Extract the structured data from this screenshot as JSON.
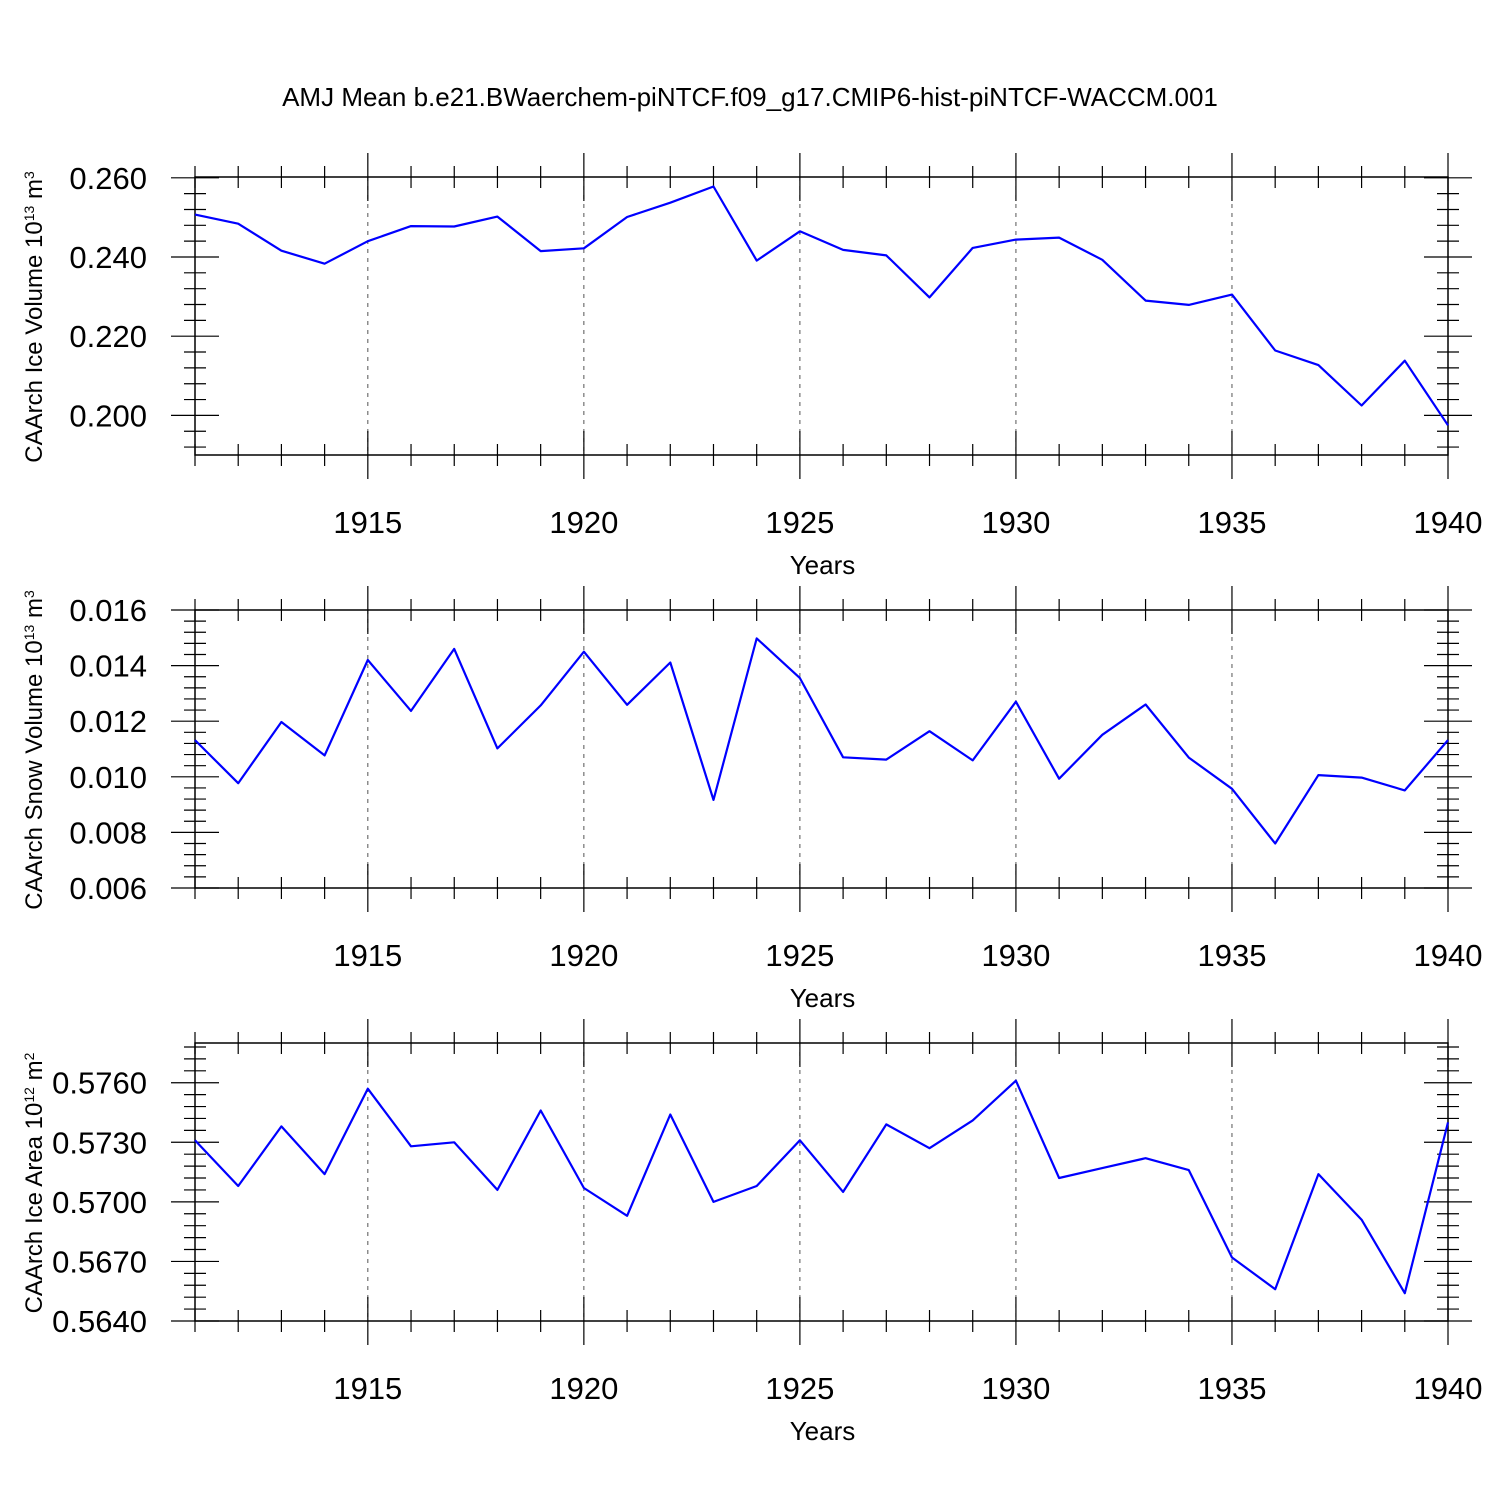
{
  "title": "AMJ Mean b.e21.BWaerchem-piNTCF.f09_g17.CMIP6-hist-piNTCF-WACCM.001",
  "colors": {
    "line": "#0000ff",
    "axis": "#000000",
    "grid": "#555555"
  },
  "chart_data": [
    {
      "type": "line",
      "name": "ice-volume",
      "xlabel": "Years",
      "ylabel": {
        "base": "CAArch Ice Volume 10",
        "exp1": "13",
        "unit": " m",
        "exp2": "3"
      },
      "xlim": [
        1911,
        1940
      ],
      "ylim": [
        0.19,
        0.2602
      ],
      "xticks": [
        "1915",
        "1920",
        "1925",
        "1930",
        "1935",
        "1940"
      ],
      "yticks": [
        "0.200",
        "0.220",
        "0.240",
        "0.260"
      ],
      "ytick_values": [
        0.2,
        0.22,
        0.24,
        0.26
      ],
      "x": [
        1911,
        1912,
        1913,
        1914,
        1915,
        1916,
        1917,
        1918,
        1919,
        1920,
        1921,
        1922,
        1923,
        1924,
        1925,
        1926,
        1927,
        1928,
        1929,
        1930,
        1931,
        1932,
        1933,
        1934,
        1935,
        1936,
        1937,
        1938,
        1939,
        1940
      ],
      "series": [
        {
          "name": "CAArch Ice Volume",
          "values": [
            0.2507,
            0.2484,
            0.2416,
            0.2383,
            0.244,
            0.2478,
            0.2477,
            0.2502,
            0.2415,
            0.2422,
            0.2501,
            0.2537,
            0.2578,
            0.2391,
            0.2465,
            0.2418,
            0.2404,
            0.2298,
            0.2423,
            0.2444,
            0.2449,
            0.2393,
            0.229,
            0.2279,
            0.2305,
            0.2164,
            0.2127,
            0.2025,
            0.2138,
            0.1975
          ]
        }
      ]
    },
    {
      "type": "line",
      "name": "snow-volume",
      "xlabel": "Years",
      "ylabel": {
        "base": "CAArch Snow Volume 10",
        "exp1": "13",
        "unit": " m",
        "exp2": "3"
      },
      "xlim": [
        1911,
        1940
      ],
      "ylim": [
        0.006,
        0.016
      ],
      "xticks": [
        "1915",
        "1920",
        "1925",
        "1930",
        "1935",
        "1940"
      ],
      "yticks": [
        "0.006",
        "0.008",
        "0.010",
        "0.012",
        "0.014",
        "0.016"
      ],
      "ytick_values": [
        0.006,
        0.008,
        0.01,
        0.012,
        0.014,
        0.016
      ],
      "x": [
        1911,
        1912,
        1913,
        1914,
        1915,
        1916,
        1917,
        1918,
        1919,
        1920,
        1921,
        1922,
        1923,
        1924,
        1925,
        1926,
        1927,
        1928,
        1929,
        1930,
        1931,
        1932,
        1933,
        1934,
        1935,
        1936,
        1937,
        1938,
        1939,
        1940
      ],
      "series": [
        {
          "name": "CAArch Snow Volume",
          "values": [
            0.01132,
            0.00977,
            0.01197,
            0.01077,
            0.0142,
            0.01237,
            0.0146,
            0.01102,
            0.01257,
            0.0145,
            0.01259,
            0.01411,
            0.00917,
            0.01498,
            0.01355,
            0.0107,
            0.01062,
            0.01164,
            0.01059,
            0.0127,
            0.00993,
            0.01151,
            0.0126,
            0.01069,
            0.00957,
            0.0076,
            0.01006,
            0.00997,
            0.00951,
            0.01132
          ]
        }
      ]
    },
    {
      "type": "line",
      "name": "ice-area",
      "xlabel": "Years",
      "ylabel": {
        "base": "CAArch Ice Area 10",
        "exp1": "12",
        "unit": " m",
        "exp2": "2"
      },
      "xlim": [
        1911,
        1940
      ],
      "ylim": [
        0.564,
        0.578
      ],
      "xticks": [
        "1915",
        "1920",
        "1925",
        "1930",
        "1935",
        "1940"
      ],
      "yticks": [
        "0.5640",
        "0.5670",
        "0.5700",
        "0.5730",
        "0.5760"
      ],
      "ytick_values": [
        0.564,
        0.567,
        0.57,
        0.573,
        0.576
      ],
      "x": [
        1911,
        1912,
        1913,
        1914,
        1915,
        1916,
        1917,
        1918,
        1919,
        1920,
        1921,
        1922,
        1923,
        1924,
        1925,
        1926,
        1927,
        1928,
        1929,
        1930,
        1931,
        1932,
        1933,
        1934,
        1935,
        1936,
        1937,
        1938,
        1939,
        1940
      ],
      "series": [
        {
          "name": "CAArch Ice Area",
          "values": [
            0.5731,
            0.5708,
            0.5738,
            0.5714,
            0.5757,
            0.5728,
            0.573,
            0.5706,
            0.5746,
            0.5707,
            0.5693,
            0.5744,
            0.57,
            0.5708,
            0.5731,
            0.5705,
            0.5739,
            0.5727,
            0.5741,
            0.5761,
            0.5712,
            0.5717,
            0.5722,
            0.5716,
            0.5672,
            0.5656,
            0.5714,
            0.5691,
            0.5654,
            0.574
          ]
        }
      ]
    }
  ]
}
